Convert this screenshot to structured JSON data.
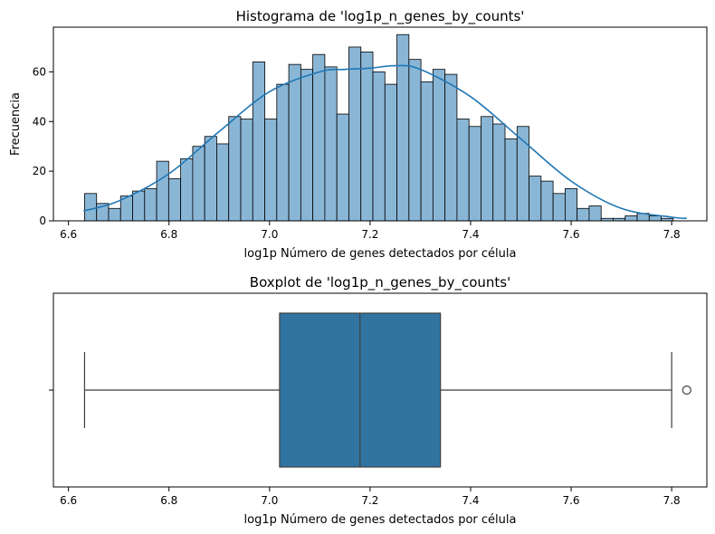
{
  "chart_data": [
    {
      "type": "bar",
      "title": "Histograma de 'log1p_n_genes_by_counts'",
      "xlabel": "log1p Número de genes detectados por célula",
      "ylabel": "Frecuencia",
      "xlim": [
        6.57,
        7.87
      ],
      "ylim": [
        0,
        78
      ],
      "xticks": [
        6.6,
        6.8,
        7.0,
        7.2,
        7.4,
        7.6,
        7.8
      ],
      "xtick_labels": [
        "6.6",
        "6.8",
        "7.0",
        "7.2",
        "7.4",
        "7.6",
        "7.8"
      ],
      "yticks": [
        0,
        20,
        40,
        60
      ],
      "ytick_labels": [
        "0",
        "20",
        "40",
        "60"
      ],
      "bin_start": 6.632,
      "bin_width": 0.0239,
      "values": [
        11,
        7,
        5,
        10,
        12,
        13,
        24,
        17,
        25,
        30,
        34,
        31,
        42,
        41,
        64,
        41,
        55,
        63,
        61,
        67,
        62,
        43,
        70,
        68,
        60,
        55,
        75,
        65,
        56,
        61,
        59,
        41,
        38,
        42,
        39,
        33,
        38,
        18,
        16,
        11,
        13,
        5,
        6,
        1,
        1,
        2,
        3,
        2,
        1
      ],
      "kde": {
        "x": [
          6.63,
          6.7,
          6.8,
          6.9,
          7.0,
          7.1,
          7.15,
          7.2,
          7.25,
          7.3,
          7.4,
          7.5,
          7.6,
          7.7,
          7.8,
          7.83
        ],
        "y": [
          4,
          8,
          19,
          36,
          52,
          60,
          61,
          61.5,
          62.5,
          61,
          50,
          33,
          16,
          5,
          1.5,
          1
        ]
      },
      "bar_color": "#8ab6d6",
      "kde_color": "#1f77b4",
      "grid": false
    },
    {
      "type": "box",
      "title": "Boxplot de 'log1p_n_genes_by_counts'",
      "xlabel": "log1p Número de genes detectados por célula",
      "ylabel": "",
      "xlim": [
        6.57,
        7.87
      ],
      "xticks": [
        6.6,
        6.8,
        7.0,
        7.2,
        7.4,
        7.6,
        7.8
      ],
      "xtick_labels": [
        "6.6",
        "6.8",
        "7.0",
        "7.2",
        "7.4",
        "7.6",
        "7.8"
      ],
      "whisker_low": 6.632,
      "q1": 7.02,
      "median": 7.18,
      "q3": 7.34,
      "whisker_high": 7.8,
      "outliers": [
        7.83
      ],
      "box_color": "#3274a1",
      "grid": false
    }
  ]
}
